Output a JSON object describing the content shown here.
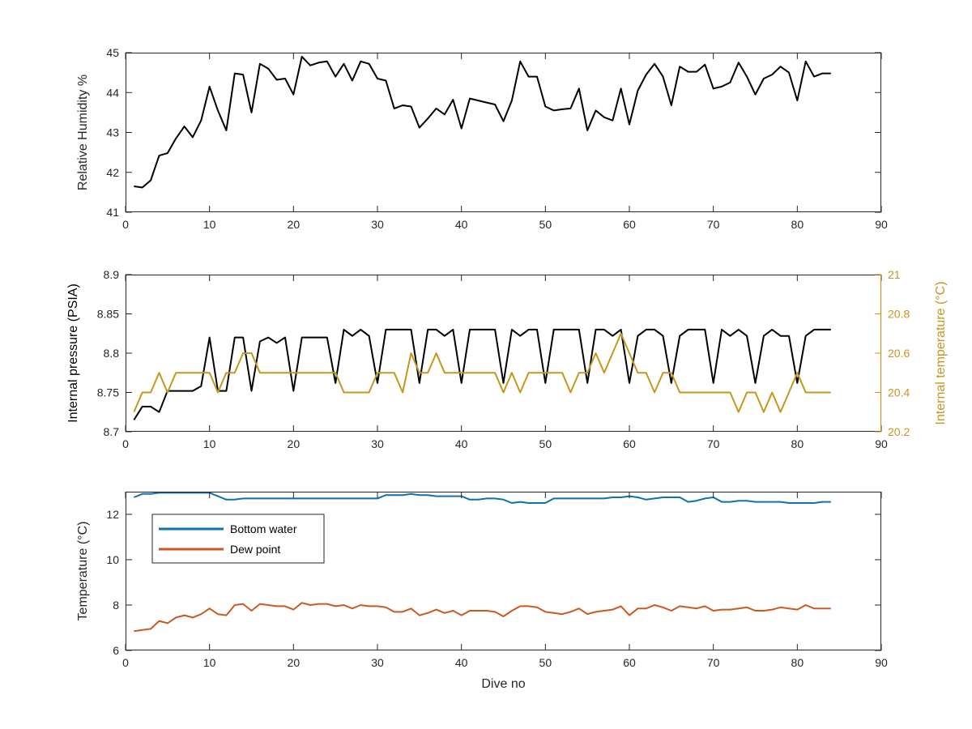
{
  "figure": {
    "width": 1200,
    "height": 900
  },
  "colors": {
    "axes": "#262626",
    "black": "#000000",
    "gold": "#C8961E",
    "blue": "#0E72B0",
    "orange": "#CB5A22"
  },
  "chart_data": [
    {
      "id": "humidity",
      "type": "line",
      "xlabel": "",
      "ylabel": "Relative Humidity %",
      "xlim": [
        0,
        90
      ],
      "ylim": [
        41,
        45
      ],
      "xticks": [
        0,
        10,
        20,
        30,
        40,
        50,
        60,
        70,
        80,
        90
      ],
      "yticks": [
        41,
        42,
        43,
        44,
        45
      ],
      "series": [
        {
          "color": "#000000",
          "x": [
            1,
            2,
            3,
            4,
            5,
            6,
            7,
            8,
            9,
            10,
            11,
            12,
            13,
            14,
            15,
            16,
            17,
            18,
            19,
            20,
            21,
            22,
            23,
            24,
            25,
            26,
            27,
            28,
            29,
            30,
            31,
            32,
            33,
            34,
            35,
            36,
            37,
            38,
            39,
            40,
            41,
            42,
            43,
            44,
            45,
            46,
            47,
            48,
            49,
            50,
            51,
            52,
            53,
            54,
            55,
            56,
            57,
            58,
            59,
            60,
            61,
            62,
            63,
            64,
            65,
            66,
            67,
            68,
            69,
            70,
            71,
            72,
            73,
            74,
            75,
            76,
            77,
            78,
            79,
            80,
            81,
            82,
            83,
            84
          ],
          "y": [
            41.65,
            41.62,
            41.8,
            42.42,
            42.48,
            42.85,
            43.15,
            42.88,
            43.3,
            44.15,
            43.55,
            43.05,
            44.48,
            44.45,
            43.5,
            44.72,
            44.6,
            44.32,
            44.35,
            43.95,
            44.9,
            44.68,
            44.75,
            44.78,
            44.4,
            44.72,
            44.3,
            44.78,
            44.72,
            44.35,
            44.3,
            43.6,
            43.68,
            43.65,
            43.12,
            43.35,
            43.6,
            43.45,
            43.82,
            43.1,
            43.85,
            43.8,
            43.75,
            43.7,
            43.28,
            43.8,
            44.78,
            44.4,
            44.4,
            43.65,
            43.55,
            43.58,
            43.6,
            44.1,
            43.05,
            43.55,
            43.38,
            43.3,
            44.1,
            43.2,
            44.05,
            44.45,
            44.72,
            44.4,
            43.68,
            44.65,
            44.52,
            44.52,
            44.7,
            44.1,
            44.15,
            44.25,
            44.75,
            44.4,
            43.95,
            44.35,
            44.45,
            44.65,
            44.5,
            43.8,
            44.78,
            44.4,
            44.48,
            44.48
          ]
        }
      ]
    },
    {
      "id": "pressure",
      "type": "line",
      "xlabel": "",
      "ylabel": "Internal pressure (PSIA)",
      "y2label": "Internal temperature (°C)",
      "xlim": [
        0,
        90
      ],
      "ylim": [
        8.7,
        8.9
      ],
      "y2lim": [
        20.2,
        21
      ],
      "xticks": [
        0,
        10,
        20,
        30,
        40,
        50,
        60,
        70,
        80,
        90
      ],
      "yticks": [
        8.7,
        8.75,
        8.8,
        8.85,
        8.9
      ],
      "ytick_labels": [
        "8.7",
        "8.75",
        "8.8",
        "8.85",
        "8.9"
      ],
      "y2ticks": [
        20.2,
        20.4,
        20.6,
        20.8,
        21
      ],
      "y2tick_labels": [
        "20.2",
        "20.4",
        "20.6",
        "20.8",
        "21"
      ],
      "series": [
        {
          "axis": "left",
          "color": "#000000",
          "x": [
            1,
            2,
            3,
            4,
            5,
            6,
            7,
            8,
            9,
            10,
            11,
            12,
            13,
            14,
            15,
            16,
            17,
            18,
            19,
            20,
            21,
            22,
            23,
            24,
            25,
            26,
            27,
            28,
            29,
            30,
            31,
            32,
            33,
            34,
            35,
            36,
            37,
            38,
            39,
            40,
            41,
            42,
            43,
            44,
            45,
            46,
            47,
            48,
            49,
            50,
            51,
            52,
            53,
            54,
            55,
            56,
            57,
            58,
            59,
            60,
            61,
            62,
            63,
            64,
            65,
            66,
            67,
            68,
            69,
            70,
            71,
            72,
            73,
            74,
            75,
            76,
            77,
            78,
            79,
            80,
            81,
            82,
            83,
            84
          ],
          "y": [
            8.715,
            8.732,
            8.732,
            8.725,
            8.752,
            8.752,
            8.752,
            8.752,
            8.758,
            8.82,
            8.752,
            8.752,
            8.82,
            8.82,
            8.752,
            8.815,
            8.82,
            8.813,
            8.82,
            8.752,
            8.82,
            8.82,
            8.82,
            8.82,
            8.762,
            8.83,
            8.822,
            8.83,
            8.822,
            8.762,
            8.83,
            8.83,
            8.83,
            8.83,
            8.762,
            8.83,
            8.83,
            8.822,
            8.83,
            8.762,
            8.83,
            8.83,
            8.83,
            8.83,
            8.762,
            8.83,
            8.822,
            8.83,
            8.83,
            8.762,
            8.83,
            8.83,
            8.83,
            8.83,
            8.762,
            8.83,
            8.83,
            8.822,
            8.83,
            8.762,
            8.822,
            8.83,
            8.83,
            8.822,
            8.762,
            8.822,
            8.83,
            8.83,
            8.83,
            8.762,
            8.83,
            8.822,
            8.83,
            8.822,
            8.762,
            8.822,
            8.83,
            8.822,
            8.822,
            8.762,
            8.822,
            8.83,
            8.83,
            8.83
          ]
        },
        {
          "axis": "right",
          "color": "#C8961E",
          "x": [
            1,
            2,
            3,
            4,
            5,
            6,
            7,
            8,
            9,
            10,
            11,
            12,
            13,
            14,
            15,
            16,
            17,
            18,
            19,
            20,
            21,
            22,
            23,
            24,
            25,
            26,
            27,
            28,
            29,
            30,
            31,
            32,
            33,
            34,
            35,
            36,
            37,
            38,
            39,
            40,
            41,
            42,
            43,
            44,
            45,
            46,
            47,
            48,
            49,
            50,
            51,
            52,
            53,
            54,
            55,
            56,
            57,
            58,
            59,
            60,
            61,
            62,
            63,
            64,
            65,
            66,
            67,
            68,
            69,
            70,
            71,
            72,
            73,
            74,
            75,
            76,
            77,
            78,
            79,
            80,
            81,
            82,
            83,
            84
          ],
          "y": [
            20.3,
            20.4,
            20.4,
            20.5,
            20.4,
            20.5,
            20.5,
            20.5,
            20.5,
            20.5,
            20.4,
            20.5,
            20.5,
            20.6,
            20.6,
            20.5,
            20.5,
            20.5,
            20.5,
            20.5,
            20.5,
            20.5,
            20.5,
            20.5,
            20.5,
            20.4,
            20.4,
            20.4,
            20.4,
            20.5,
            20.5,
            20.5,
            20.4,
            20.6,
            20.5,
            20.5,
            20.6,
            20.5,
            20.5,
            20.5,
            20.5,
            20.5,
            20.5,
            20.5,
            20.4,
            20.5,
            20.4,
            20.5,
            20.5,
            20.5,
            20.5,
            20.5,
            20.4,
            20.5,
            20.5,
            20.6,
            20.5,
            20.6,
            20.7,
            20.6,
            20.5,
            20.5,
            20.4,
            20.5,
            20.5,
            20.4,
            20.4,
            20.4,
            20.4,
            20.4,
            20.4,
            20.4,
            20.3,
            20.4,
            20.4,
            20.3,
            20.4,
            20.3,
            20.4,
            20.5,
            20.4,
            20.4,
            20.4,
            20.4
          ]
        }
      ]
    },
    {
      "id": "temperature",
      "type": "line",
      "xlabel": "Dive no",
      "ylabel": "Temperature (°C)",
      "xlim": [
        0,
        90
      ],
      "ylim": [
        6,
        13
      ],
      "xticks": [
        0,
        10,
        20,
        30,
        40,
        50,
        60,
        70,
        80,
        90
      ],
      "yticks": [
        6,
        8,
        10,
        12
      ],
      "legend": {
        "placement": "upper-left"
      },
      "series": [
        {
          "name": "Bottom water",
          "color": "#0E72B0",
          "x": [
            1,
            2,
            3,
            4,
            5,
            6,
            7,
            8,
            9,
            10,
            11,
            12,
            13,
            14,
            15,
            16,
            17,
            18,
            19,
            20,
            21,
            22,
            23,
            24,
            25,
            26,
            27,
            28,
            29,
            30,
            31,
            32,
            33,
            34,
            35,
            36,
            37,
            38,
            39,
            40,
            41,
            42,
            43,
            44,
            45,
            46,
            47,
            48,
            49,
            50,
            51,
            52,
            53,
            54,
            55,
            56,
            57,
            58,
            59,
            60,
            61,
            62,
            63,
            64,
            65,
            66,
            67,
            68,
            69,
            70,
            71,
            72,
            73,
            74,
            75,
            76,
            77,
            78,
            79,
            80,
            81,
            82,
            83,
            84
          ],
          "y": [
            12.75,
            12.9,
            12.9,
            12.95,
            12.95,
            12.95,
            12.95,
            12.95,
            12.95,
            12.95,
            12.8,
            12.65,
            12.65,
            12.7,
            12.7,
            12.7,
            12.7,
            12.7,
            12.7,
            12.7,
            12.7,
            12.7,
            12.7,
            12.7,
            12.7,
            12.7,
            12.7,
            12.7,
            12.7,
            12.7,
            12.85,
            12.85,
            12.85,
            12.9,
            12.85,
            12.85,
            12.8,
            12.8,
            12.8,
            12.8,
            12.65,
            12.65,
            12.7,
            12.7,
            12.65,
            12.5,
            12.55,
            12.5,
            12.5,
            12.5,
            12.7,
            12.7,
            12.7,
            12.7,
            12.7,
            12.7,
            12.7,
            12.75,
            12.75,
            12.8,
            12.75,
            12.65,
            12.7,
            12.75,
            12.75,
            12.75,
            12.55,
            12.6,
            12.7,
            12.75,
            12.55,
            12.55,
            12.6,
            12.6,
            12.55,
            12.55,
            12.55,
            12.55,
            12.5,
            12.5,
            12.5,
            12.5,
            12.55,
            12.55
          ]
        },
        {
          "name": "Dew point",
          "color": "#CB5A22",
          "x": [
            1,
            2,
            3,
            4,
            5,
            6,
            7,
            8,
            9,
            10,
            11,
            12,
            13,
            14,
            15,
            16,
            17,
            18,
            19,
            20,
            21,
            22,
            23,
            24,
            25,
            26,
            27,
            28,
            29,
            30,
            31,
            32,
            33,
            34,
            35,
            36,
            37,
            38,
            39,
            40,
            41,
            42,
            43,
            44,
            45,
            46,
            47,
            48,
            49,
            50,
            51,
            52,
            53,
            54,
            55,
            56,
            57,
            58,
            59,
            60,
            61,
            62,
            63,
            64,
            65,
            66,
            67,
            68,
            69,
            70,
            71,
            72,
            73,
            74,
            75,
            76,
            77,
            78,
            79,
            80,
            81,
            82,
            83,
            84
          ],
          "y": [
            6.85,
            6.9,
            6.95,
            7.3,
            7.2,
            7.45,
            7.55,
            7.45,
            7.6,
            7.85,
            7.6,
            7.55,
            8.0,
            8.05,
            7.75,
            8.05,
            8.0,
            7.95,
            7.95,
            7.8,
            8.1,
            8.0,
            8.05,
            8.05,
            7.95,
            8.0,
            7.85,
            8.0,
            7.95,
            7.95,
            7.9,
            7.7,
            7.7,
            7.85,
            7.55,
            7.65,
            7.8,
            7.65,
            7.75,
            7.55,
            7.75,
            7.75,
            7.75,
            7.7,
            7.5,
            7.75,
            7.95,
            7.95,
            7.9,
            7.7,
            7.65,
            7.6,
            7.7,
            7.85,
            7.6,
            7.7,
            7.75,
            7.8,
            7.95,
            7.55,
            7.85,
            7.85,
            8.0,
            7.9,
            7.75,
            7.95,
            7.9,
            7.85,
            7.95,
            7.75,
            7.8,
            7.8,
            7.85,
            7.9,
            7.75,
            7.75,
            7.8,
            7.9,
            7.85,
            7.8,
            8.0,
            7.85,
            7.85,
            7.85
          ]
        }
      ]
    }
  ]
}
